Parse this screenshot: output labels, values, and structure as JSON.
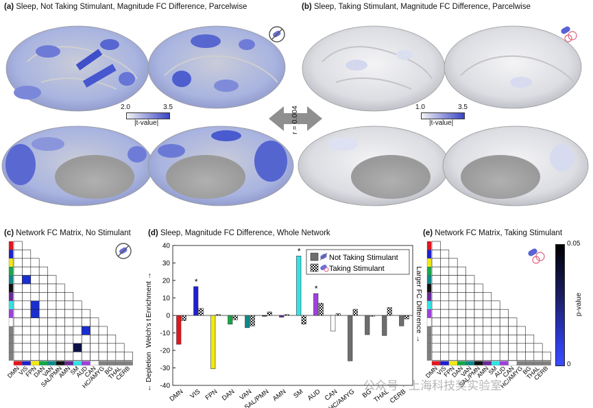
{
  "panels": {
    "a": {
      "letter": "(a)",
      "title": "Sleep, Not Taking Stimulant, Magnitude FC Difference, Parcelwise"
    },
    "b": {
      "letter": "(b)",
      "title": "Sleep, Taking Stimulant, Magnitude FC Difference, Parcelwise"
    },
    "c": {
      "letter": "(c)",
      "title": "Network FC Matrix, No Stimulant"
    },
    "d": {
      "letter": "(d)",
      "title": "Sleep, Magnitude FC Difference, Whole Network"
    },
    "e": {
      "letter": "(e)",
      "title": "Network FC Matrix, Taking Stimulant"
    }
  },
  "colorbar_a": {
    "min": "2.0",
    "max": "3.5",
    "label": "|t-value|"
  },
  "colorbar_b": {
    "min": "1.0",
    "max": "3.5",
    "label": "|t-value|"
  },
  "correlation": "r = 0.004",
  "pvalue_bar": {
    "top": "0.05",
    "bottom": "0",
    "label": "p-value"
  },
  "networks": [
    "DMN",
    "VIS",
    "FPN",
    "DAN",
    "VAN",
    "SAL/PMN",
    "AMN",
    "SM",
    "AUD",
    "CAN",
    "HC/AMYG",
    "BG",
    "THAL",
    "CERB"
  ],
  "network_colors": [
    "#e8141c",
    "#1f1fd4",
    "#f2ea10",
    "#16a84a",
    "#0d8a8a",
    "#111111",
    "#6a2a9a",
    "#2ee6e6",
    "#a040e0",
    "#ffffff",
    "#808080",
    "#808080",
    "#808080",
    "#808080"
  ],
  "matrix_c_sig_cells": [
    [
      4,
      1
    ],
    [
      7,
      2
    ],
    [
      8,
      2
    ],
    [
      7,
      8
    ],
    [
      10,
      8
    ],
    [
      12,
      7
    ]
  ],
  "chart_data": {
    "type": "bar",
    "title": "Sleep, Magnitude FC Difference, Whole Network",
    "categories": [
      "DMN",
      "VIS",
      "FPN",
      "DAN",
      "VAN",
      "SAL/PMN",
      "AMN",
      "SM",
      "AUD",
      "CAN",
      "HC/AMYG",
      "BG",
      "THAL",
      "CERB"
    ],
    "series": [
      {
        "name": "Not Taking Stimulant",
        "values": [
          -16.5,
          16.5,
          -30.5,
          -5,
          -7,
          -0.5,
          -1,
          34,
          12.5,
          -9,
          -26,
          -11,
          -11.5,
          -6
        ]
      },
      {
        "name": "Taking Stimulant",
        "values": [
          -3,
          4,
          0.5,
          -2.5,
          -6,
          2,
          0.5,
          -5,
          7,
          1,
          3.5,
          -0.5,
          4.5,
          -2
        ]
      }
    ],
    "significant": [
      "VIS",
      "SM",
      "AUD"
    ],
    "star": "*",
    "ylabel": "Welch's t",
    "ylabel_top": "Enrichment →",
    "ylabel_bottom": "← Depletion",
    "ylabel_right": "Larger FC Difference →",
    "ylim": [
      -40,
      40
    ],
    "yticks": [
      "40",
      "30",
      "20",
      "10",
      "0",
      "-10",
      "-20",
      "-30",
      "-40"
    ]
  },
  "watermark": "公众号 · 上海科技奖实验室"
}
